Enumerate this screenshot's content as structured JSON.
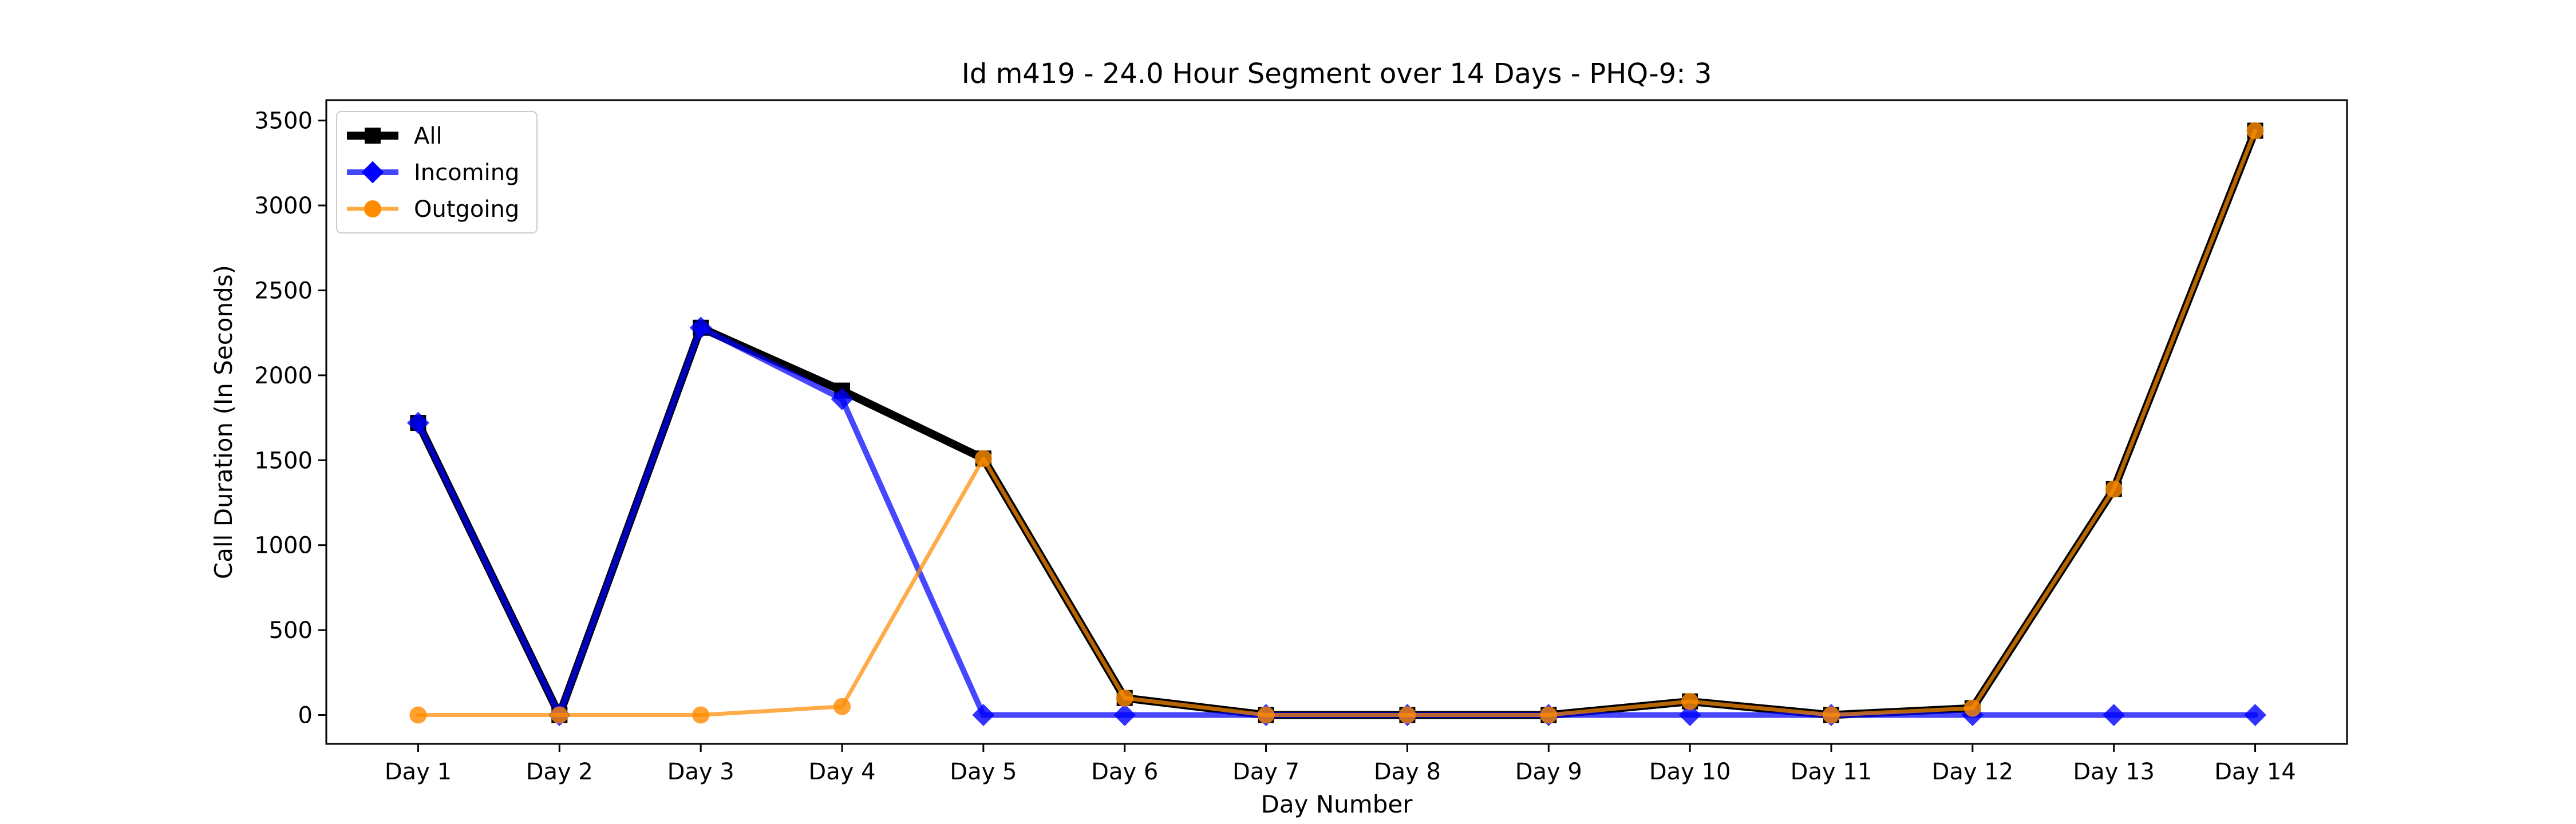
{
  "chart_data": {
    "type": "line",
    "title": "Id m419 - 24.0 Hour Segment over 14 Days - PHQ-9: 3",
    "xlabel": "Day Number",
    "ylabel": "Call Duration (In Seconds)",
    "categories": [
      "Day 1",
      "Day 2",
      "Day 3",
      "Day 4",
      "Day 5",
      "Day 6",
      "Day 7",
      "Day 8",
      "Day 9",
      "Day 10",
      "Day 11",
      "Day 12",
      "Day 13",
      "Day 14"
    ],
    "ylim": [
      -170,
      3620
    ],
    "yticks": [
      0,
      500,
      1000,
      1500,
      2000,
      2500,
      3000,
      3500
    ],
    "grid": false,
    "legend_position": "top-left",
    "series": [
      {
        "name": "All",
        "color": "#000000",
        "marker": "square",
        "values": [
          1720,
          0,
          2280,
          1910,
          1510,
          100,
          0,
          0,
          0,
          80,
          0,
          40,
          1330,
          3440
        ]
      },
      {
        "name": "Incoming",
        "color": "#0000ff",
        "marker": "diamond",
        "values": [
          1720,
          0,
          2280,
          1860,
          0,
          0,
          0,
          0,
          0,
          0,
          0,
          0,
          0,
          0
        ]
      },
      {
        "name": "Outgoing",
        "color": "#ff8c00",
        "marker": "circle",
        "values": [
          0,
          0,
          0,
          50,
          1510,
          100,
          0,
          0,
          0,
          80,
          0,
          40,
          1330,
          3440
        ]
      }
    ]
  }
}
